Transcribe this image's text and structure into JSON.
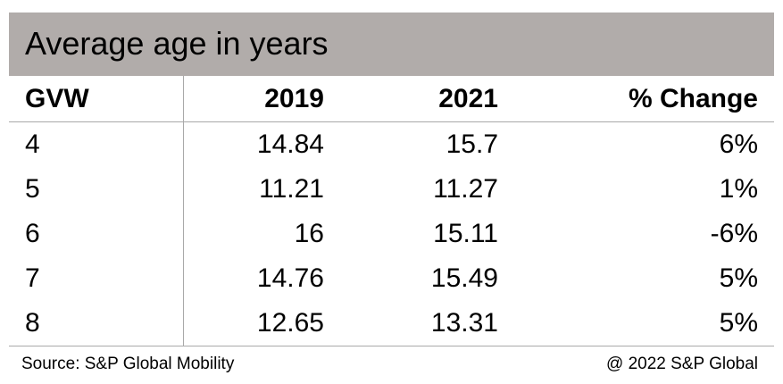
{
  "chart_data": {
    "type": "table",
    "title": "Average age in years",
    "columns": [
      "GVW",
      "2019",
      "2021",
      "% Change"
    ],
    "rows": [
      [
        "4",
        "14.84",
        "15.7",
        "6%"
      ],
      [
        "5",
        "11.21",
        "11.27",
        "1%"
      ],
      [
        "6",
        "16",
        "15.11",
        "-6%"
      ],
      [
        "7",
        "14.76",
        "15.49",
        "5%"
      ],
      [
        "8",
        "12.65",
        "13.31",
        "5%"
      ]
    ]
  },
  "footer": {
    "source": "Source: S&P Global Mobility",
    "copyright": "@ 2022 S&P Global"
  },
  "colors": {
    "title_background": "#b1acaa",
    "grid_lines": "#a9a9a9"
  }
}
